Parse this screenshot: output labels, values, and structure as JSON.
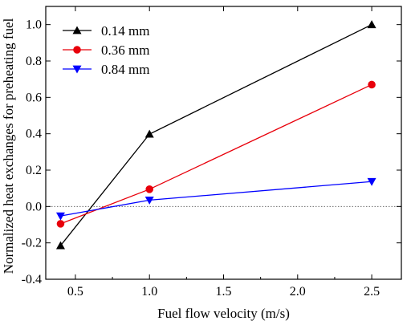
{
  "chart_data": {
    "type": "line",
    "xlabel": "Fuel flow velocity (m/s)",
    "ylabel": "Normalized heat exchanges for preheating fuel",
    "xlim": [
      0.3,
      2.7
    ],
    "ylim": [
      -0.4,
      1.1
    ],
    "xticks": [
      "0.5",
      "1.0",
      "1.5",
      "2.0",
      "2.5"
    ],
    "yticks": [
      "-0.4",
      "-0.2",
      "0.0",
      "0.2",
      "0.4",
      "0.6",
      "0.8",
      "1.0"
    ],
    "reference_line": {
      "y": 0.0,
      "style": "dotted"
    },
    "legend_position": "top-left",
    "grid": false,
    "series": [
      {
        "name": "0.14 mm",
        "color": "#000000",
        "marker": "triangle-up",
        "x": [
          0.4,
          1.0,
          2.5
        ],
        "y": [
          -0.215,
          0.398,
          1.0
        ]
      },
      {
        "name": "0.36 mm",
        "color": "#e8000b",
        "marker": "circle",
        "x": [
          0.4,
          1.0,
          2.5
        ],
        "y": [
          -0.095,
          0.095,
          0.67
        ]
      },
      {
        "name": "0.84 mm",
        "color": "#0000ff",
        "marker": "triangle-down",
        "x": [
          0.4,
          1.0,
          2.5
        ],
        "y": [
          -0.052,
          0.035,
          0.137
        ]
      }
    ]
  }
}
